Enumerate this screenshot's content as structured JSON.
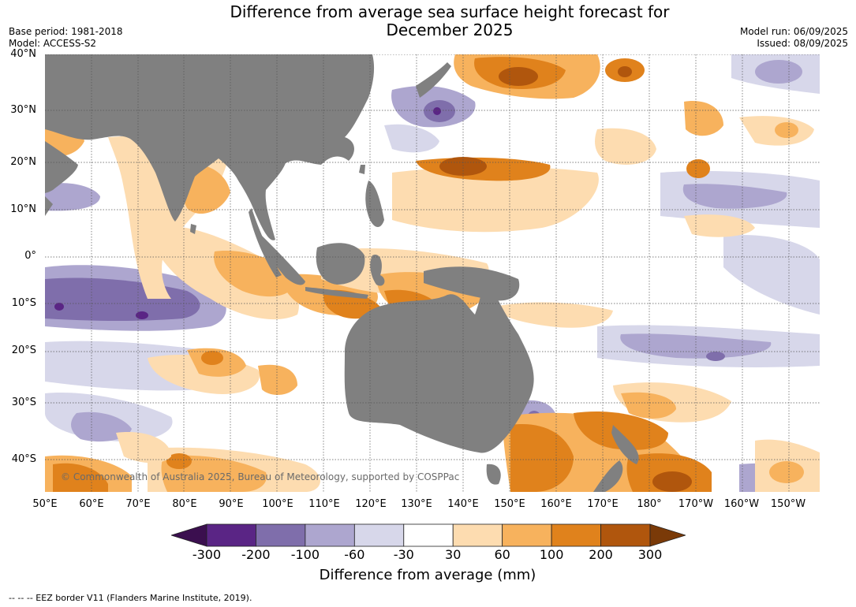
{
  "header": {
    "title_line1": "Difference from average sea surface height forecast for",
    "title_line2": "December 2025",
    "base_period": "Base period: 1981-2018",
    "model": "Model: ACCESS-S2",
    "model_run": "Model run: 06/09/2025",
    "issued": "Issued: 08/09/2025"
  },
  "map": {
    "lat_labels": [
      "40°N",
      "30°N",
      "20°N",
      "10°N",
      "0°",
      "10°S",
      "20°S",
      "30°S",
      "40°S"
    ],
    "lon_labels": [
      "50°E",
      "60°E",
      "70°E",
      "80°E",
      "90°E",
      "100°E",
      "110°E",
      "120°E",
      "130°E",
      "140°E",
      "150°E",
      "160°E",
      "170°E",
      "180°",
      "170°W",
      "160°W",
      "150°W"
    ],
    "land_color": "#808080",
    "copyright": "© Commonwealth of Australia 2025, Bureau of Meteorology, supported by COSPPac"
  },
  "colorbar": {
    "ticks": [
      "-300",
      "-200",
      "-100",
      "-60",
      "-30",
      "30",
      "60",
      "100",
      "200",
      "300"
    ],
    "colors": [
      "#3b0f4f",
      "#5a2585",
      "#7f6eab",
      "#ada6cf",
      "#d7d7ea",
      "#ffffff",
      "#fddcb0",
      "#f7b25d",
      "#e0821c",
      "#b0560d",
      "#7a3a08"
    ],
    "title": "Difference from average (mm)"
  },
  "footnote": "--  --  -- EEZ border V11 (Flanders Marine Institute, 2019)."
}
